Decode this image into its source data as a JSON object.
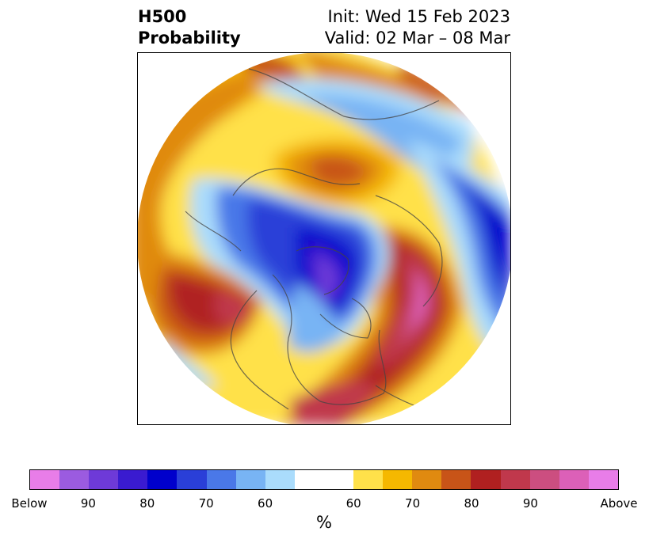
{
  "title": {
    "left_line1": "H500",
    "left_line2": "Probability",
    "right_line1": "Init: Wed 15 Feb 2023",
    "right_line2": "Valid: 02 Mar – 08 Mar"
  },
  "colorbar": {
    "colors": [
      "#e87de8",
      "#9b5be0",
      "#6e3ad8",
      "#3a1bd0",
      "#0000cc",
      "#2a3fd8",
      "#4a78e8",
      "#78b4f4",
      "#aadcfc",
      "#ffffff",
      "#ffe14a",
      "#f5b800",
      "#e08a10",
      "#c85418",
      "#b02020",
      "#c0384c",
      "#cc4e80",
      "#dc60b8",
      "#e87de8"
    ],
    "labels": [
      "Below",
      "90",
      "80",
      "70",
      "60",
      "60",
      "70",
      "80",
      "90",
      "Above"
    ],
    "unit": "%"
  }
}
